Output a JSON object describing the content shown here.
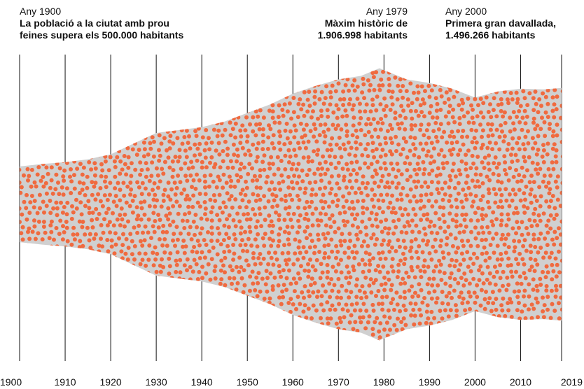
{
  "annotations": [
    {
      "year": "Any 1900",
      "text": "La població a la ciutat amb prou\nfeines supera els 500.000 habitants"
    },
    {
      "year": "Any 1979",
      "text": "Màxim històric de\n1.906.998 habitants"
    },
    {
      "year": "Any 2000",
      "text": "Primera gran davallada,\n1.496.266 habitants"
    }
  ],
  "chart_data": {
    "type": "area",
    "x": [
      1900,
      1905,
      1910,
      1915,
      1920,
      1925,
      1930,
      1935,
      1940,
      1945,
      1950,
      1955,
      1960,
      1965,
      1970,
      1975,
      1979,
      1980,
      1985,
      1990,
      1995,
      2000,
      2005,
      2010,
      2015,
      2019
    ],
    "y": [
      530000,
      565000,
      590000,
      630000,
      700000,
      850000,
      1000000,
      1040000,
      1080000,
      1160000,
      1280000,
      1400000,
      1550000,
      1660000,
      1750000,
      1800000,
      1906998,
      1880000,
      1750000,
      1700000,
      1620000,
      1496266,
      1580000,
      1620000,
      1610000,
      1630000
    ],
    "xlim": [
      1900,
      2019
    ],
    "x_ticks": [
      "1900",
      "1910",
      "1920",
      "1930",
      "1940",
      "1950",
      "1960",
      "1970",
      "1980",
      "1990",
      "2000",
      "2010",
      "2019"
    ],
    "grid": true,
    "colors": {
      "band": "#d0d0d0",
      "dot": "#f06a3f",
      "gridline": "#111111"
    }
  }
}
